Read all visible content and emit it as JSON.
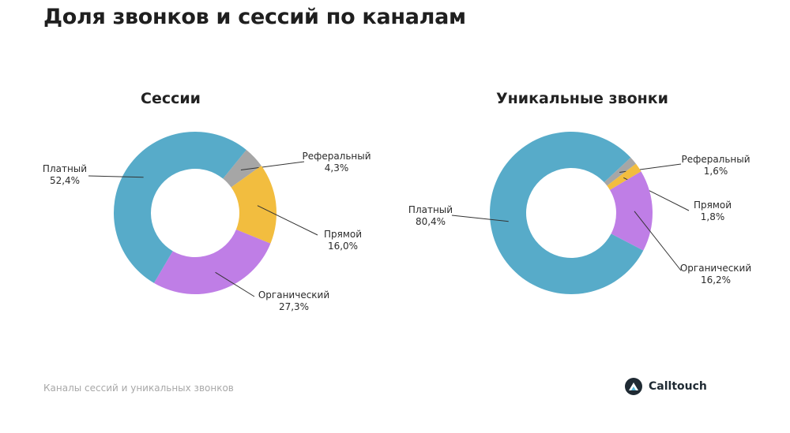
{
  "page": {
    "title": "Доля звонков и сессий по каналам",
    "footer_note": "Каналы сессий и уникальных звонков",
    "brand_name": "Calltouch"
  },
  "colors": {
    "Платный": "#57abc9",
    "Реферальный": "#a6a6a6",
    "Прямой": "#f2bd3f",
    "Органический": "#bf7ee6"
  },
  "chart_data": [
    {
      "type": "pie",
      "title": "Сессии",
      "categories": [
        "Реферальный",
        "Прямой",
        "Органический",
        "Платный"
      ],
      "values": [
        4.3,
        16.0,
        27.3,
        52.4
      ],
      "value_labels": [
        "4,3%",
        "16,0%",
        "27,3%",
        "52,4%"
      ],
      "donut": true,
      "start_angle_deg": 39
    },
    {
      "type": "pie",
      "title": "Уникальные звонки",
      "categories": [
        "Реферальный",
        "Прямой",
        "Органический",
        "Платный"
      ],
      "values": [
        1.6,
        1.8,
        16.2,
        80.4
      ],
      "value_labels": [
        "1,6%",
        "1,8%",
        "16,2%",
        "80,4%"
      ],
      "donut": true,
      "start_angle_deg": 47
    }
  ]
}
